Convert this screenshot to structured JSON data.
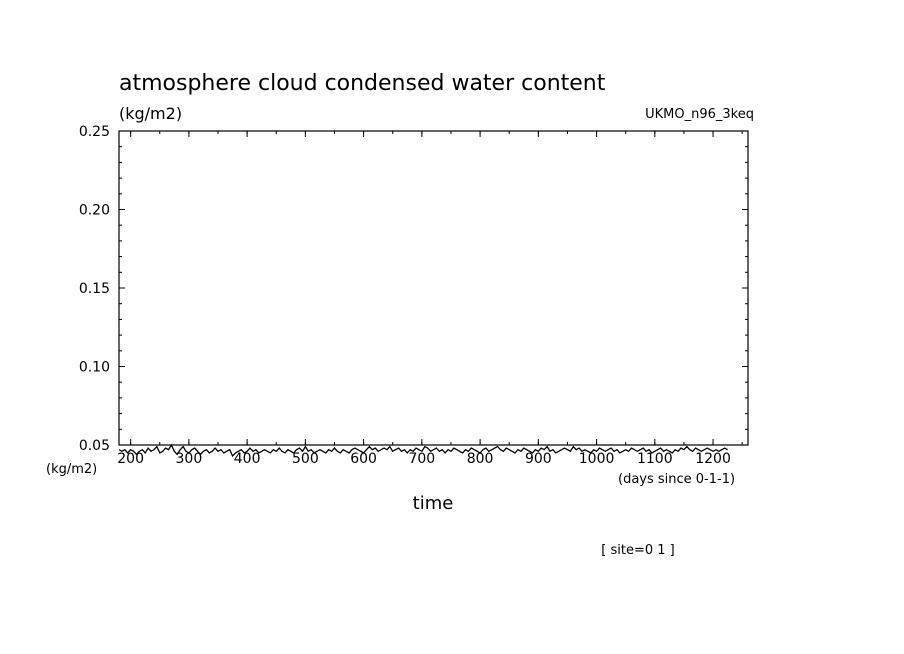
{
  "chart_data": {
    "type": "line",
    "title": "atmosphere cloud condensed water content",
    "unit_label": "(kg/m2)",
    "model_label": "UKMO_n96_3keq",
    "xlabel": "time",
    "xunit_label": "(days since 0-1-1)",
    "lower_axis_unit_label": "(kg/m2)",
    "site_label": "[ site=0 1 ]",
    "xlim": [
      180,
      1260
    ],
    "ylim": [
      0.05,
      0.25
    ],
    "x_ticks": [
      "200",
      "300",
      "400",
      "500",
      "600",
      "700",
      "800",
      "900",
      "1000",
      "1100",
      "1200"
    ],
    "y_ticks": [
      "0.05",
      "0.10",
      "0.15",
      "0.20",
      "0.25"
    ],
    "series": [
      {
        "color": "#000000",
        "x_start": 180,
        "x_step": 5,
        "values": [
          0.047,
          0.046,
          0.047,
          0.045,
          0.047,
          0.046,
          0.044,
          0.046,
          0.047,
          0.045,
          0.048,
          0.046,
          0.047,
          0.049,
          0.045,
          0.046,
          0.048,
          0.047,
          0.05,
          0.046,
          0.044,
          0.047,
          0.049,
          0.046,
          0.045,
          0.047,
          0.048,
          0.046,
          0.044,
          0.046,
          0.047,
          0.045,
          0.046,
          0.048,
          0.046,
          0.047,
          0.045,
          0.046,
          0.047,
          0.043,
          0.045,
          0.046,
          0.047,
          0.045,
          0.046,
          0.048,
          0.046,
          0.047,
          0.045,
          0.046,
          0.047,
          0.046,
          0.045,
          0.047,
          0.046,
          0.048,
          0.046,
          0.045,
          0.047,
          0.046,
          0.045,
          0.047,
          0.048,
          0.046,
          0.049,
          0.046,
          0.047,
          0.045,
          0.046,
          0.047,
          0.046,
          0.045,
          0.047,
          0.046,
          0.048,
          0.046,
          0.045,
          0.047,
          0.046,
          0.045,
          0.047,
          0.048,
          0.047,
          0.046,
          0.045,
          0.047,
          0.049,
          0.047,
          0.048,
          0.046,
          0.047,
          0.048,
          0.047,
          0.049,
          0.046,
          0.047,
          0.048,
          0.046,
          0.047,
          0.045,
          0.047,
          0.046,
          0.048,
          0.047,
          0.046,
          0.049,
          0.048,
          0.046,
          0.047,
          0.048,
          0.046,
          0.047,
          0.045,
          0.047,
          0.046,
          0.048,
          0.047,
          0.046,
          0.045,
          0.047,
          0.046,
          0.048,
          0.047,
          0.046,
          0.045,
          0.047,
          0.048,
          0.046,
          0.047,
          0.048,
          0.049,
          0.047,
          0.046,
          0.048,
          0.047,
          0.046,
          0.045,
          0.047,
          0.046,
          0.048,
          0.047,
          0.046,
          0.045,
          0.047,
          0.046,
          0.048,
          0.047,
          0.049,
          0.046,
          0.047,
          0.045,
          0.046,
          0.047,
          0.048,
          0.047,
          0.046,
          0.049,
          0.047,
          0.048,
          0.046,
          0.047,
          0.046,
          0.045,
          0.047,
          0.046,
          0.048,
          0.047,
          0.046,
          0.047,
          0.048,
          0.046,
          0.047,
          0.045,
          0.046,
          0.047,
          0.046,
          0.048,
          0.047,
          0.046,
          0.047,
          0.048,
          0.046,
          0.047,
          0.045,
          0.046,
          0.047,
          0.048,
          0.046,
          0.047,
          0.046,
          0.045,
          0.047,
          0.046,
          0.048,
          0.047,
          0.049,
          0.047,
          0.046,
          0.048,
          0.047,
          0.046,
          0.047,
          0.048,
          0.047,
          0.046,
          0.047,
          0.046,
          0.047,
          0.048,
          0.047
        ]
      }
    ]
  }
}
